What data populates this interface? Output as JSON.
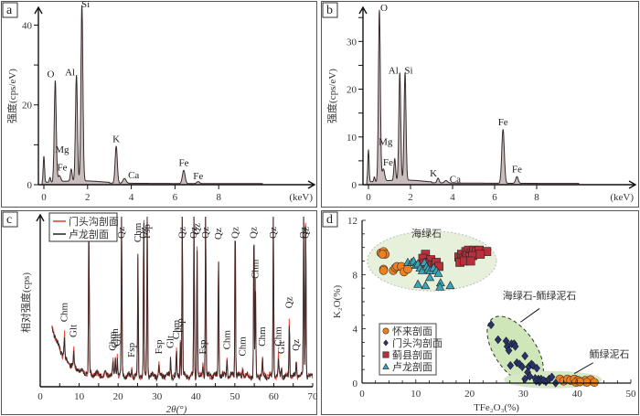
{
  "chart_data": [
    {
      "panel": "a",
      "type": "area",
      "title": "",
      "xlabel": "(keV)",
      "ylabel": "强度(cps/eV)",
      "xlim": [
        0,
        10
      ],
      "ylim": [
        0,
        44
      ],
      "xticks": [
        0,
        2,
        4,
        6,
        8
      ],
      "yticks": [
        0,
        20,
        40
      ],
      "fill_color": "#c8bebe",
      "line_color": "#3a2a2a",
      "peaks": [
        {
          "element": "",
          "x": 0.0,
          "y": 6.5
        },
        {
          "element": "",
          "x": 0.28,
          "y": 1.2
        },
        {
          "element": "O",
          "x": 0.52,
          "y": 25.5
        },
        {
          "element": "Fe",
          "x": 0.71,
          "y": 1.5
        },
        {
          "element": "Mg",
          "x": 1.25,
          "y": 3.0
        },
        {
          "element": "Al",
          "x": 1.49,
          "y": 26.5
        },
        {
          "element": "Si",
          "x": 1.74,
          "y": 44.0
        },
        {
          "element": "K",
          "x": 3.31,
          "y": 9.3
        },
        {
          "element": "Ca",
          "x": 3.69,
          "y": 1.2
        },
        {
          "element": "Fe",
          "x": 6.4,
          "y": 3.3
        },
        {
          "element": "Fe",
          "x": 7.06,
          "y": 0.5
        }
      ]
    },
    {
      "panel": "b",
      "type": "area",
      "title": "",
      "xlabel": "(keV)",
      "ylabel": "强度(cps/eV)",
      "xlim": [
        0,
        10
      ],
      "ylim": [
        0,
        36
      ],
      "xticks": [
        0,
        2,
        4,
        6,
        8
      ],
      "yticks": [
        0,
        10,
        20,
        30
      ],
      "fill_color": "#c8bebe",
      "line_color": "#3a2a2a",
      "peaks": [
        {
          "element": "",
          "x": 0.0,
          "y": 6.7
        },
        {
          "element": "",
          "x": 0.28,
          "y": 1.0
        },
        {
          "element": "O",
          "x": 0.52,
          "y": 36.0
        },
        {
          "element": "Fe",
          "x": 0.71,
          "y": 2.5
        },
        {
          "element": "Mg",
          "x": 1.25,
          "y": 4.5
        },
        {
          "element": "Al",
          "x": 1.49,
          "y": 22.5
        },
        {
          "element": "Si",
          "x": 1.74,
          "y": 22.5
        },
        {
          "element": "K",
          "x": 3.31,
          "y": 1.0
        },
        {
          "element": "Ca",
          "x": 3.69,
          "y": 0.5
        },
        {
          "element": "Fe",
          "x": 6.4,
          "y": 11.3
        },
        {
          "element": "Fe",
          "x": 7.06,
          "y": 1.4
        }
      ]
    },
    {
      "panel": "c",
      "type": "line",
      "title": "",
      "xlabel": "2θ(°)",
      "ylabel": "相对强度(cps)",
      "xlim": [
        0,
        70
      ],
      "xticks": [
        0,
        10,
        20,
        30,
        40,
        50,
        60,
        70
      ],
      "legend": {
        "placement": "top-left",
        "entries": [
          {
            "name": "门头沟剖面",
            "color": "#e8463a"
          },
          {
            "name": "卢龙剖面",
            "color": "#3a2a2a"
          }
        ]
      },
      "series": [
        {
          "name": "门头沟剖面",
          "color": "#e8463a"
        },
        {
          "name": "卢龙剖面",
          "color": "#3a2a2a"
        }
      ],
      "peaks": [
        {
          "label": "Chm",
          "x": 6.2,
          "rel": 0.14
        },
        {
          "label": "Glt",
          "x": 8.6,
          "rel": 0.1
        },
        {
          "label": "Chm",
          "x": 12.5,
          "rel": 1.0
        },
        {
          "label": "Chm",
          "x": 18.7,
          "rel": 0.07
        },
        {
          "label": "Chm",
          "x": 19.3,
          "rel": 0.1
        },
        {
          "label": "Glt",
          "x": 19.8,
          "rel": 0.12
        },
        {
          "label": "Qz",
          "x": 20.9,
          "rel": 1.0
        },
        {
          "label": "Fsp",
          "x": 23.5,
          "rel": 0.05
        },
        {
          "label": "Chm",
          "x": 25.1,
          "rel": 0.72
        },
        {
          "label": "Qz",
          "x": 26.6,
          "rel": 1.0
        },
        {
          "label": "Fsp",
          "x": 27.5,
          "rel": 1.0
        },
        {
          "label": "Fsp",
          "x": 30.5,
          "rel": 0.06
        },
        {
          "label": "Glt",
          "x": 33.5,
          "rel": 0.1
        },
        {
          "label": "Chm",
          "x": 35.0,
          "rel": 0.14
        },
        {
          "label": "Fsp",
          "x": 36.0,
          "rel": 0.2
        },
        {
          "label": "Qz",
          "x": 36.5,
          "rel": 1.0
        },
        {
          "label": "Qz",
          "x": 39.5,
          "rel": 1.0
        },
        {
          "label": "Qz",
          "x": 40.3,
          "rel": 0.78
        },
        {
          "label": "Fsp",
          "x": 41.8,
          "rel": 0.07
        },
        {
          "label": "Qz",
          "x": 42.5,
          "rel": 1.0
        },
        {
          "label": "Qz",
          "x": 45.8,
          "rel": 0.75
        },
        {
          "label": "Chm",
          "x": 48.0,
          "rel": 0.1
        },
        {
          "label": "Qz",
          "x": 50.1,
          "rel": 1.0
        },
        {
          "label": "Chm",
          "x": 52.0,
          "rel": 0.06
        },
        {
          "label": "Qz",
          "x": 54.9,
          "rel": 0.95
        },
        {
          "label": "Chm",
          "x": 55.3,
          "rel": 0.5
        },
        {
          "label": "Chm",
          "x": 57.1,
          "rel": 0.1
        },
        {
          "label": "Qz",
          "x": 59.9,
          "rel": 1.0
        },
        {
          "label": "Chm",
          "x": 61.2,
          "rel": 0.1
        },
        {
          "label": "Glt",
          "x": 62.0,
          "rel": 0.07
        },
        {
          "label": "Qz",
          "x": 64.0,
          "rel": 0.34
        },
        {
          "label": "Qz",
          "x": 65.8,
          "rel": 0.08
        },
        {
          "label": "Qz",
          "x": 67.7,
          "rel": 1.0
        },
        {
          "label": "Qz",
          "x": 68.2,
          "rel": 1.0
        }
      ]
    },
    {
      "panel": "d",
      "type": "scatter",
      "title": "",
      "xlabel": "TFe₂O₃(%)",
      "ylabel": "K₂O(%)",
      "xlim": [
        0,
        50
      ],
      "ylim": [
        0,
        12
      ],
      "xticks": [
        0,
        10,
        20,
        30,
        40,
        50
      ],
      "yticks": [
        0,
        4,
        8,
        12
      ],
      "legend": {
        "placement": "bottom-left",
        "entries": [
          {
            "name": "怀来剖面",
            "marker": "circle",
            "color": "#f07f1e"
          },
          {
            "name": "门头沟剖面",
            "marker": "diamond",
            "color": "#2a3368"
          },
          {
            "name": "蓟县剖面",
            "marker": "square",
            "color": "#b8303c"
          },
          {
            "name": "卢龙剖面",
            "marker": "triangle",
            "color": "#3aa5b8"
          }
        ]
      },
      "regions": [
        {
          "label": "海绿石",
          "center": [
            13.0,
            9.0
          ],
          "radii": [
            12.0,
            2.2
          ]
        },
        {
          "label": "海绿石-鲕绿泥石",
          "center": [
            28.5,
            2.4
          ],
          "radii": [
            3.8,
            2.9
          ]
        },
        {
          "label": "鲕绿泥石",
          "center": [
            35.5,
            0.25
          ],
          "radii": [
            9.0,
            0.6
          ]
        }
      ],
      "series": [
        {
          "name": "怀来剖面",
          "marker": "circle",
          "color": "#f07f1e",
          "points": [
            [
              3.5,
              9.6
            ],
            [
              4.0,
              9.7
            ],
            [
              4.3,
              9.5
            ],
            [
              3.8,
              9.5
            ],
            [
              4.0,
              8.4
            ],
            [
              4.0,
              8.3
            ],
            [
              5.8,
              8.3
            ],
            [
              6.2,
              8.5
            ],
            [
              6.5,
              8.6
            ],
            [
              7.3,
              8.6
            ],
            [
              7.8,
              8.2
            ],
            [
              8.5,
              8.4
            ],
            [
              36.8,
              0.3
            ],
            [
              37.5,
              0.15
            ],
            [
              38.2,
              0.3
            ],
            [
              38.8,
              0.2
            ],
            [
              39.5,
              0.3
            ],
            [
              40.2,
              0.2
            ],
            [
              39.8,
              0.05
            ],
            [
              41.5,
              0.2
            ],
            [
              42.5,
              0.25
            ],
            [
              41.8,
              0.05
            ],
            [
              43.2,
              0.05
            ],
            [
              40.5,
              0.1
            ]
          ]
        },
        {
          "name": "门头沟剖面",
          "marker": "diamond",
          "color": "#2a3368",
          "points": [
            [
              24.0,
              4.3
            ],
            [
              25.3,
              3.2
            ],
            [
              26.8,
              3.1
            ],
            [
              27.0,
              2.7
            ],
            [
              27.3,
              2.4
            ],
            [
              27.8,
              2.9
            ],
            [
              28.3,
              2.9
            ],
            [
              28.5,
              2.7
            ],
            [
              28.8,
              1.5
            ],
            [
              29.3,
              1.4
            ],
            [
              27.6,
              1.3
            ],
            [
              29.8,
              1.2
            ],
            [
              30.3,
              2.0
            ],
            [
              31.0,
              1.2
            ],
            [
              31.5,
              1.4
            ],
            [
              31.8,
              1.3
            ],
            [
              30.8,
              0.8
            ],
            [
              30.3,
              0.3
            ],
            [
              31.2,
              0.5
            ],
            [
              32.5,
              1.1
            ],
            [
              32.2,
              0.35
            ],
            [
              32.8,
              0.3
            ],
            [
              33.3,
              0.3
            ],
            [
              33.0,
              0.1
            ],
            [
              33.8,
              0.2
            ],
            [
              34.2,
              0.1
            ],
            [
              34.8,
              0.3
            ],
            [
              35.3,
              0.45
            ],
            [
              36.0,
              0.0
            ],
            [
              32.4,
              0.15
            ]
          ]
        },
        {
          "name": "蓟县剖面",
          "marker": "square",
          "color": "#b8303c",
          "points": [
            [
              11.8,
              9.5
            ],
            [
              11.3,
              9.2
            ],
            [
              12.3,
              8.9
            ],
            [
              12.8,
              9.1
            ],
            [
              13.2,
              8.7
            ],
            [
              13.8,
              8.9
            ],
            [
              14.3,
              8.6
            ],
            [
              12.0,
              8.7
            ],
            [
              11.5,
              8.8
            ],
            [
              18.0,
              9.3
            ],
            [
              18.5,
              9.5
            ],
            [
              18.8,
              9.2
            ],
            [
              19.3,
              9.7
            ],
            [
              19.8,
              9.8
            ],
            [
              20.3,
              9.6
            ],
            [
              20.8,
              9.8
            ],
            [
              21.3,
              9.7
            ],
            [
              21.8,
              9.8
            ],
            [
              19.5,
              9.4
            ],
            [
              20.0,
              9.3
            ],
            [
              20.6,
              9.4
            ],
            [
              18.2,
              8.9
            ],
            [
              19.0,
              9.0
            ],
            [
              20.2,
              9.0
            ],
            [
              23.2,
              9.7
            ],
            [
              22.0,
              9.5
            ]
          ]
        },
        {
          "name": "卢龙剖面",
          "marker": "triangle",
          "color": "#3aa5b8",
          "points": [
            [
              8.5,
              8.9
            ],
            [
              9.2,
              8.9
            ],
            [
              9.6,
              9.0
            ],
            [
              10.0,
              8.7
            ],
            [
              10.4,
              8.8
            ],
            [
              10.8,
              8.5
            ],
            [
              11.2,
              8.3
            ],
            [
              11.6,
              8.9
            ],
            [
              12.0,
              8.6
            ],
            [
              12.3,
              8.4
            ],
            [
              12.7,
              8.3
            ],
            [
              13.3,
              8.5
            ],
            [
              13.8,
              8.3
            ],
            [
              14.2,
              8.1
            ],
            [
              12.6,
              7.8
            ],
            [
              10.4,
              7.3
            ],
            [
              11.8,
              7.2
            ],
            [
              14.6,
              7.4
            ],
            [
              14.5,
              7.1
            ],
            [
              16.4,
              7.2
            ]
          ]
        }
      ]
    }
  ],
  "panels": {
    "a_letter": "a",
    "b_letter": "b",
    "c_letter": "c",
    "d_letter": "d"
  }
}
